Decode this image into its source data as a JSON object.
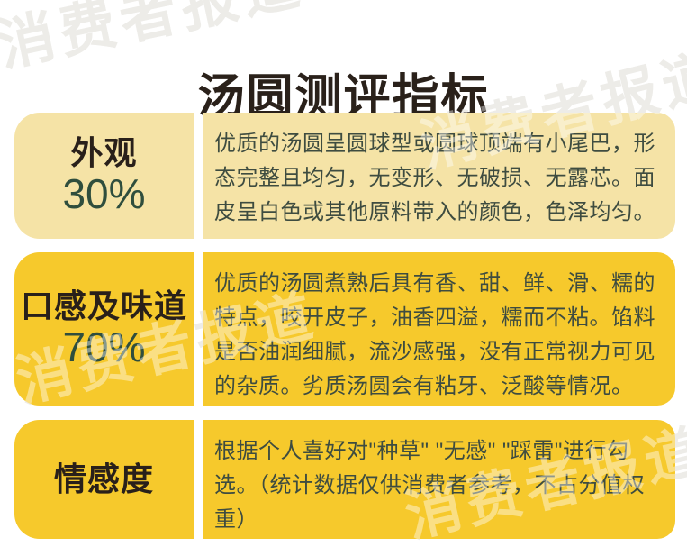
{
  "title": "汤圆测评指标",
  "watermark": {
    "text": "消费者报道"
  },
  "colors": {
    "cream": "#F5E3A6",
    "yellow": "#F6C92C",
    "label": "#29201A",
    "percent": "#2F4E3D",
    "body": "#3E4C40",
    "title": "#2A211A"
  },
  "rows": [
    {
      "label": "外观",
      "weight": "30%",
      "description": "优质的汤圆呈圆球型或圆球顶端有小尾巴，形态完整且均匀，无变形、无破损、无露芯。面皮呈白色或其他原料带入的颜色，色泽均匀。"
    },
    {
      "label": "口感及味道",
      "weight": "70%",
      "description": "优质的汤圆煮熟后具有香、甜、鲜、滑、糯的特点，咬开皮子，油香四溢，糯而不粘。馅料是否油润细腻，流沙感强，没有正常视力可见的杂质。劣质汤圆会有粘牙、泛酸等情况。"
    },
    {
      "label": "情感度",
      "weight": "",
      "description": "根据个人喜好对\"种草\" \"无感\" \"踩雷\"进行勾选。（统计数据仅供消费者参考，不占分值权重）"
    }
  ]
}
